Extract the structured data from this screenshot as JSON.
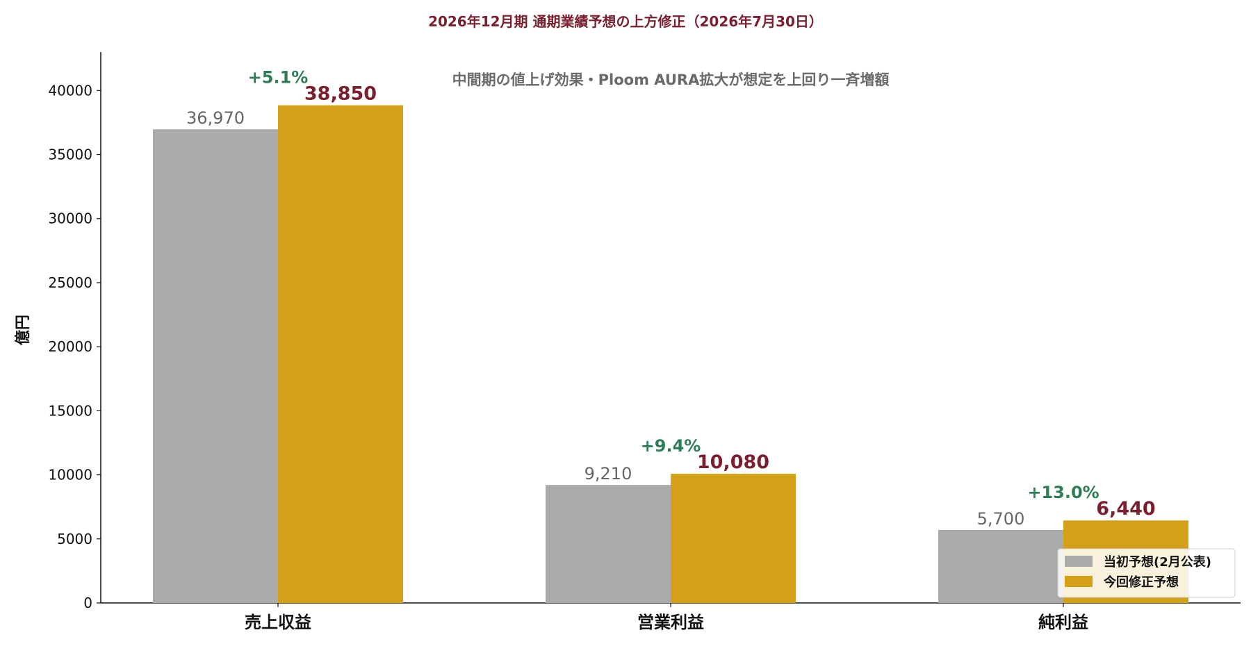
{
  "chart_data": {
    "type": "bar",
    "title": "2026年12月期 通期業績予想の上方修正（2026年7月30日）",
    "annotation": "中間期の値上げ効果・Ploom AURA拡大が想定を上回り一斉増額",
    "ylabel": "億円",
    "xlabel": "",
    "ylim": [
      0,
      43000
    ],
    "yticks": [
      0,
      5000,
      10000,
      15000,
      20000,
      25000,
      30000,
      35000,
      40000
    ],
    "categories": [
      "売上収益",
      "営業利益",
      "純利益"
    ],
    "series": [
      {
        "name": "当初予想(2月公表)",
        "color": "#aaaaaa",
        "values": [
          36970,
          9210,
          5700
        ],
        "labels": [
          "36,970",
          "9,210",
          "5,700"
        ]
      },
      {
        "name": "今回修正予想",
        "color": "#d4a017",
        "values": [
          38850,
          10080,
          6440
        ],
        "labels": [
          "38,850",
          "10,080",
          "6,440"
        ]
      }
    ],
    "change_labels": [
      "+5.1%",
      "+9.4%",
      "+13.0%"
    ],
    "legend_position": "bottom-right",
    "grid": false
  }
}
